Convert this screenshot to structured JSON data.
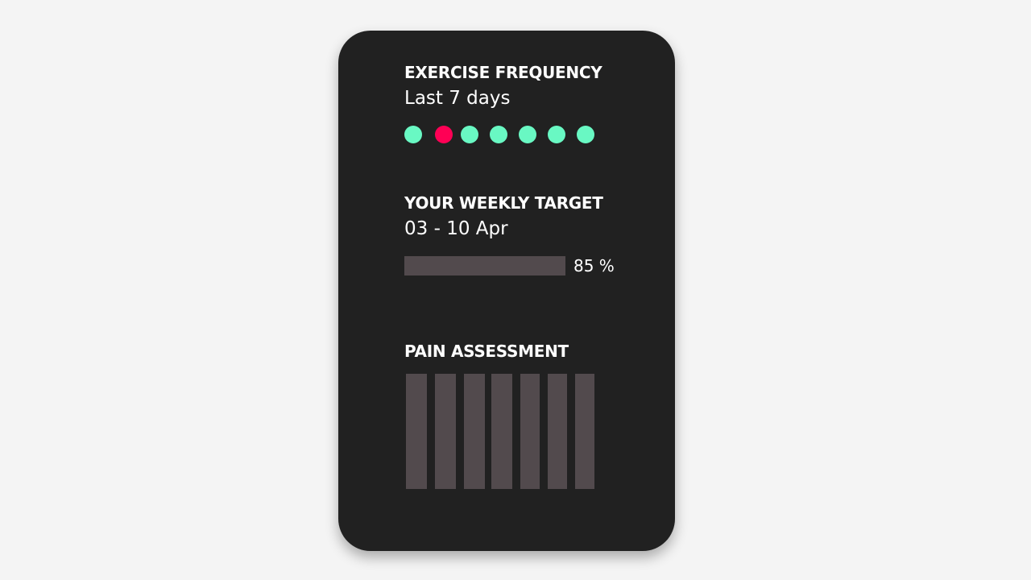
{
  "exercise": {
    "title": "EXERCISE FREQUENCY",
    "subtitle": "Last 7 days",
    "days": [
      {
        "status": "done",
        "color": "#69f8c3"
      },
      {
        "status": "missed",
        "color": "#ff0055"
      },
      {
        "status": "done",
        "color": "#69f8c3"
      },
      {
        "status": "done",
        "color": "#69f8c3"
      },
      {
        "status": "done",
        "color": "#69f8c3"
      },
      {
        "status": "done",
        "color": "#69f8c3"
      },
      {
        "status": "done",
        "color": "#69f8c3"
      }
    ]
  },
  "target": {
    "title": "YOUR WEEKLY TARGET",
    "date_range": "03 - 10 Apr",
    "progress_percent": 85,
    "progress_label": "85 %"
  },
  "pain": {
    "title": "PAIN ASSESSMENT",
    "bar_count": 7,
    "bar_color": "#524a4d"
  }
}
